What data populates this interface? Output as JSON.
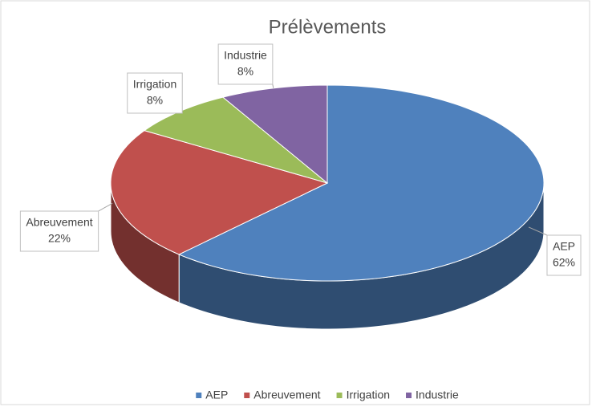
{
  "chart_data": {
    "type": "pie",
    "title": "Prélèvements",
    "categories": [
      "AEP",
      "Abreuvement",
      "Irrigation",
      "Industrie"
    ],
    "values": [
      62,
      22,
      8,
      8
    ],
    "value_labels": [
      "62%",
      "22%",
      "8%",
      "8%"
    ],
    "colors": [
      "#4f81bd",
      "#c0504d",
      "#9bbb59",
      "#8064a2"
    ],
    "legend": "bottom"
  }
}
